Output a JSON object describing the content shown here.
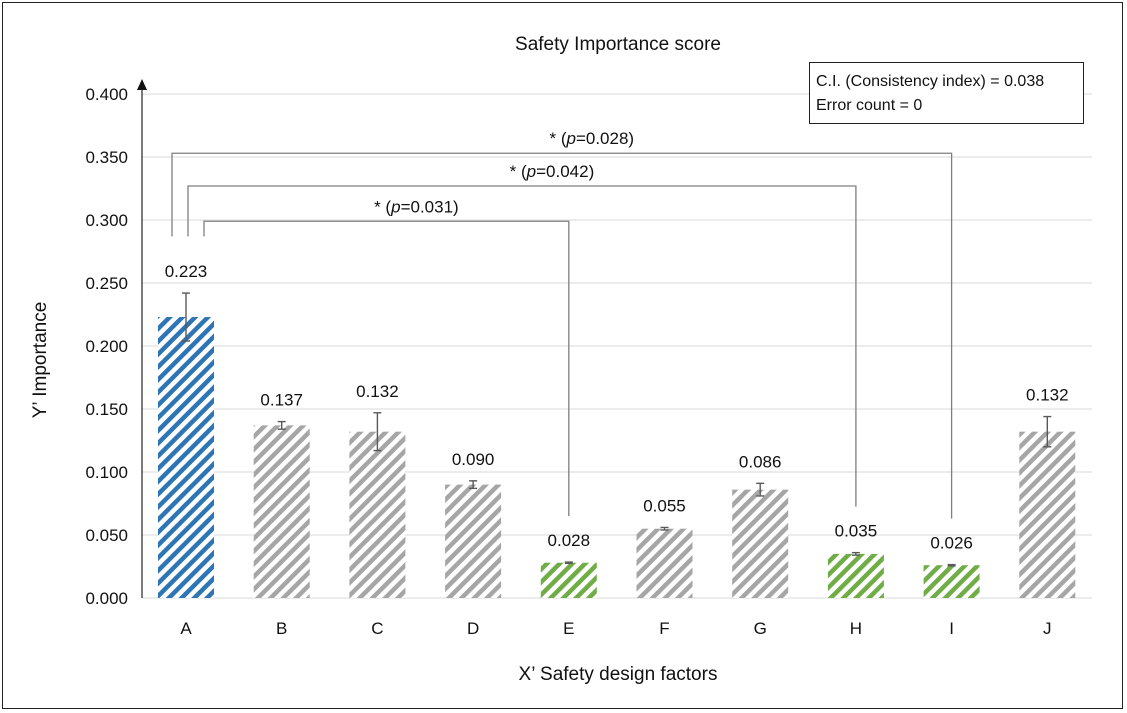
{
  "chart_data": {
    "type": "bar",
    "title": "Safety Importance score",
    "xlabel": "X’ Safety design factors",
    "ylabel": "Y’ Importance",
    "ylim": [
      0,
      0.4
    ],
    "yticks": [
      "0.000",
      "0.050",
      "0.100",
      "0.150",
      "0.200",
      "0.250",
      "0.300",
      "0.350",
      "0.400"
    ],
    "categories": [
      "A",
      "B",
      "C",
      "D",
      "E",
      "F",
      "G",
      "H",
      "I",
      "J"
    ],
    "values": [
      0.223,
      0.137,
      0.132,
      0.09,
      0.028,
      0.055,
      0.086,
      0.035,
      0.026,
      0.132
    ],
    "value_labels": [
      "0.223",
      "0.137",
      "0.132",
      "0.090",
      "0.028",
      "0.055",
      "0.086",
      "0.035",
      "0.026",
      "0.132"
    ],
    "error": [
      0.019,
      0.003,
      0.015,
      0.003,
      0.0005,
      0.001,
      0.005,
      0.001,
      0.0005,
      0.012
    ],
    "bar_groups": [
      "reference",
      "other",
      "other",
      "other",
      "significant",
      "other",
      "other",
      "significant",
      "significant",
      "other"
    ],
    "group_colors": {
      "reference": "#2e75b6",
      "other": "#a6a6a6",
      "significant": "#70ad47"
    },
    "bar_pattern": "diagonal-hatch",
    "grid": true,
    "significance_brackets": [
      {
        "from": "A",
        "to": "I",
        "label_star": "*",
        "label_open": "(",
        "label_p": "p",
        "label_value": "=0.028)",
        "height": 0.353
      },
      {
        "from": "A",
        "to": "H",
        "label_star": "*",
        "label_open": "(",
        "label_p": "p",
        "label_value": "=0.042)",
        "height": 0.327
      },
      {
        "from": "A",
        "to": "E",
        "label_star": "*",
        "label_open": "(",
        "label_p": "p",
        "label_value": "=0.031)",
        "height": 0.299
      }
    ],
    "info_box": {
      "consistency": "C.I. (Consistency index) = 0.038",
      "errors": "Error count = 0"
    }
  }
}
